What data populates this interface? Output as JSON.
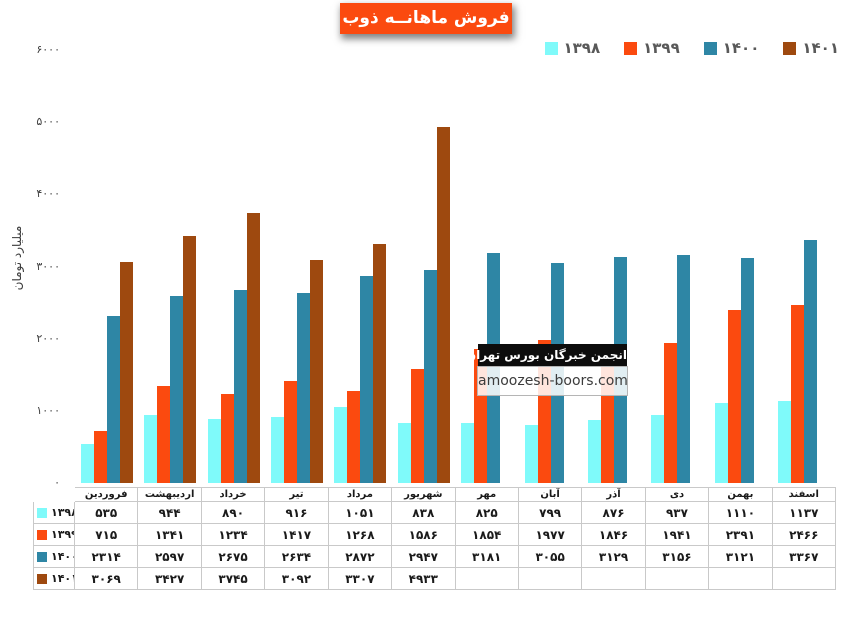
{
  "title": "فروش ماهانــه ذوب",
  "y_axis_title": "میلیارد تومان",
  "watermark": {
    "line1": "انجمن خبرگان بورس تهران",
    "line2": "amoozesh-boors.com"
  },
  "colors": {
    "title_bg": "#fb4a0f",
    "title_text": "#ffffff",
    "legend_text": "#595959",
    "axis_text": "#404040",
    "table_border": "#c9c9c9",
    "series_1398": "#7ffafa",
    "series_1399": "#fb4a0f",
    "series_1400": "#2e86a5",
    "series_1401": "#9e490f"
  },
  "chart_data": {
    "type": "bar",
    "title": "فروش ماهانــه ذوب",
    "xlabel": "",
    "ylabel": "میلیارد تومان",
    "ylim": [
      0,
      6000
    ],
    "y_ticks": [
      0,
      1000,
      2000,
      3000,
      4000,
      5000,
      6000
    ],
    "grid": false,
    "legend_position": "top-right",
    "data_table_shown": true,
    "categories": [
      "فروردین",
      "اردیبهشت",
      "خرداد",
      "تیر",
      "مرداد",
      "شهریور",
      "مهر",
      "آبان",
      "آذر",
      "دی",
      "بهمن",
      "اسفند"
    ],
    "series": [
      {
        "name": "۱۳۹۸",
        "color": "#7ffafa",
        "values": [
          535,
          944,
          890,
          916,
          1051,
          838,
          825,
          799,
          876,
          937,
          1110,
          1137
        ]
      },
      {
        "name": "۱۳۹۹",
        "color": "#fb4a0f",
        "values": [
          715,
          1341,
          1234,
          1417,
          1268,
          1586,
          1854,
          1977,
          1846,
          1941,
          2391,
          2466
        ]
      },
      {
        "name": "۱۴۰۰",
        "color": "#2e86a5",
        "values": [
          2314,
          2597,
          2675,
          2634,
          2872,
          2947,
          3181,
          3055,
          3129,
          3156,
          3121,
          3367
        ]
      },
      {
        "name": "۱۴۰۱",
        "color": "#9e490f",
        "values": [
          3069,
          3427,
          3745,
          3092,
          3307,
          4933,
          null,
          null,
          null,
          null,
          null,
          null
        ]
      }
    ]
  }
}
